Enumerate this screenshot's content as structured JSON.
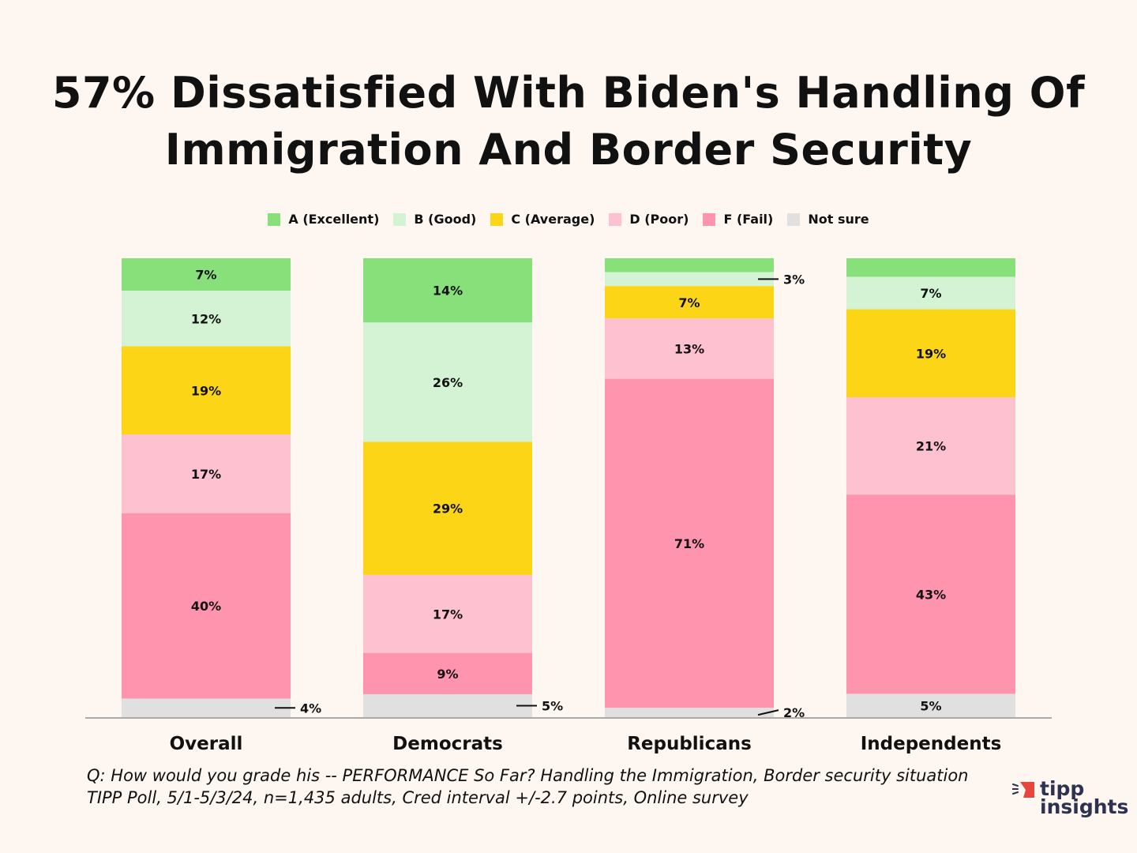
{
  "chart_data": {
    "type": "bar",
    "stacked": true,
    "orientation": "vertical",
    "title": "57% Dissatisfied With Biden's Handling Of Immigration And Border Security",
    "title_lines": [
      "57% Dissatisfied With Biden's Handling Of",
      "Immigration And Border Security"
    ],
    "categories": [
      "Overall",
      "Democrats",
      "Republicans",
      "Independents"
    ],
    "series": [
      {
        "name": "A (Excellent)",
        "color": "#88e07a",
        "values": [
          7,
          14,
          3,
          4
        ],
        "labels": [
          "7%",
          "14%",
          null,
          null
        ]
      },
      {
        "name": "B (Good)",
        "color": "#d4f3d4",
        "values": [
          12,
          26,
          3,
          7
        ],
        "labels": [
          "12%",
          "26%",
          "3%",
          "7%"
        ]
      },
      {
        "name": "C (Average)",
        "color": "#fcd616",
        "values": [
          19,
          29,
          7,
          19
        ],
        "labels": [
          "19%",
          "29%",
          "7%",
          "19%"
        ]
      },
      {
        "name": "D (Poor)",
        "color": "#fec1cf",
        "values": [
          17,
          17,
          13,
          21
        ],
        "labels": [
          "17%",
          "17%",
          "13%",
          "21%"
        ]
      },
      {
        "name": "F (Fail)",
        "color": "#fe94ad",
        "values": [
          40,
          9,
          71,
          43
        ],
        "labels": [
          "40%",
          "9%",
          "71%",
          "43%"
        ]
      },
      {
        "name": "Not sure",
        "color": "#e0e0e0",
        "values": [
          4,
          5,
          2,
          5
        ],
        "labels": [
          "4%",
          "5%",
          "2%",
          "5%"
        ]
      }
    ],
    "callout_labels": [
      [
        5,
        0
      ],
      [
        5,
        1
      ],
      [
        1,
        2
      ],
      [
        5,
        2
      ]
    ],
    "ylim": [
      0,
      100
    ],
    "grid": false,
    "legend_position": "top"
  },
  "footer": {
    "question": "Q:  How would you grade his -- PERFORMANCE So Far? Handling the Immigration, Border security situation",
    "source": "TIPP Poll, 5/1-5/3/24, n=1,435 adults, Cred interval +/-2.7 points, Online survey"
  },
  "logo": {
    "line1": "tipp",
    "line2": "insights",
    "color_accent": "#e8453c",
    "color_text": "#2d3250"
  }
}
